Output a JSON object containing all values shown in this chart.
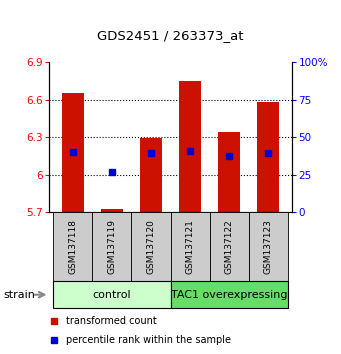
{
  "title": "GDS2451 / 263373_at",
  "samples": [
    "GSM137118",
    "GSM137119",
    "GSM137120",
    "GSM137121",
    "GSM137122",
    "GSM137123"
  ],
  "bar_bottoms": [
    5.7,
    5.7,
    5.7,
    5.7,
    5.7,
    5.7
  ],
  "bar_tops": [
    6.65,
    5.73,
    6.29,
    6.75,
    6.34,
    6.58
  ],
  "blue_values": [
    6.18,
    6.02,
    6.17,
    6.19,
    6.15,
    6.17
  ],
  "ylim_left": [
    5.7,
    6.9
  ],
  "ylim_right": [
    0,
    100
  ],
  "yticks_left": [
    5.7,
    6.0,
    6.3,
    6.6,
    6.9
  ],
  "yticks_right": [
    0,
    25,
    50,
    75,
    100
  ],
  "ytick_labels_left": [
    "5.7",
    "6",
    "6.3",
    "6.6",
    "6.9"
  ],
  "ytick_labels_right": [
    "0",
    "25",
    "50",
    "75",
    "100%"
  ],
  "grid_yvals": [
    6.0,
    6.3,
    6.6
  ],
  "groups": [
    {
      "label": "control",
      "indices": [
        0,
        1,
        2
      ],
      "color": "#ccffcc"
    },
    {
      "label": "TAC1 overexpressing",
      "indices": [
        3,
        4,
        5
      ],
      "color": "#66dd66"
    }
  ],
  "bar_color": "#cc1100",
  "blue_color": "#0000cc",
  "strain_label": "strain",
  "legend_red": "transformed count",
  "legend_blue": "percentile rank within the sample",
  "sample_box_color": "#cccccc",
  "bar_width": 0.55,
  "title_fontsize": 9.5,
  "tick_fontsize": 7.5,
  "sample_fontsize": 6.5,
  "group_fontsize": 8,
  "legend_fontsize": 7,
  "strain_fontsize": 8
}
